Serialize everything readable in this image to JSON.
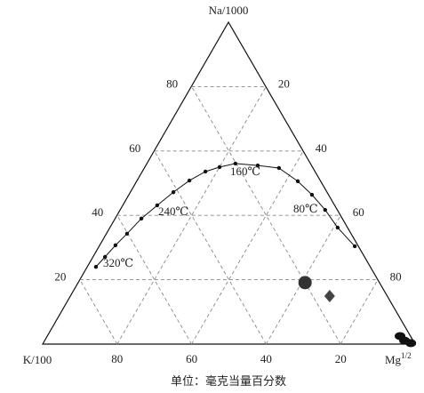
{
  "chart_data": {
    "type": "ternary",
    "vertex_labels": {
      "top": "Na/1000",
      "left": "K/100",
      "right": "Mg",
      "right_superscript": "1/2"
    },
    "caption": "单位：毫克当量百分数",
    "na_ticks": [
      20,
      40,
      60,
      80
    ],
    "mg_ticks": [
      20,
      40,
      60,
      80
    ],
    "k_ticks": [
      20,
      40,
      60,
      80
    ],
    "grid": true,
    "curve": {
      "color": "#111",
      "na": [
        24.0,
        27.1,
        30.7,
        34.3,
        39.0,
        43.1,
        47.2,
        50.8,
        53.6,
        55.0,
        56.1,
        55.5,
        54.7,
        50.6,
        46.4,
        41.7,
        36.2,
        30.4
      ],
      "mg": [
        2.3,
        3.2,
        4.2,
        5.5,
        7.0,
        9.2,
        11.5,
        14.0,
        16.9,
        20.0,
        23.7,
        30.0,
        36.1,
        43.2,
        49.1,
        55.0,
        61.1,
        68.6
      ]
    },
    "annotations": [
      "320℃",
      "240℃",
      "160℃",
      "80℃"
    ],
    "series": [
      {
        "marker": "circle",
        "color": "#333",
        "na": [
          19.1
        ],
        "mg": [
          60.9
        ]
      },
      {
        "marker": "diamond",
        "color": "#444",
        "na": [
          14.9
        ],
        "mg": [
          69.6
        ]
      },
      {
        "marker": "blob",
        "color": "#111",
        "na": [
          2.5,
          1.1,
          0.3
        ],
        "mg": [
          94.7,
          96.6,
          98.7
        ]
      }
    ]
  }
}
